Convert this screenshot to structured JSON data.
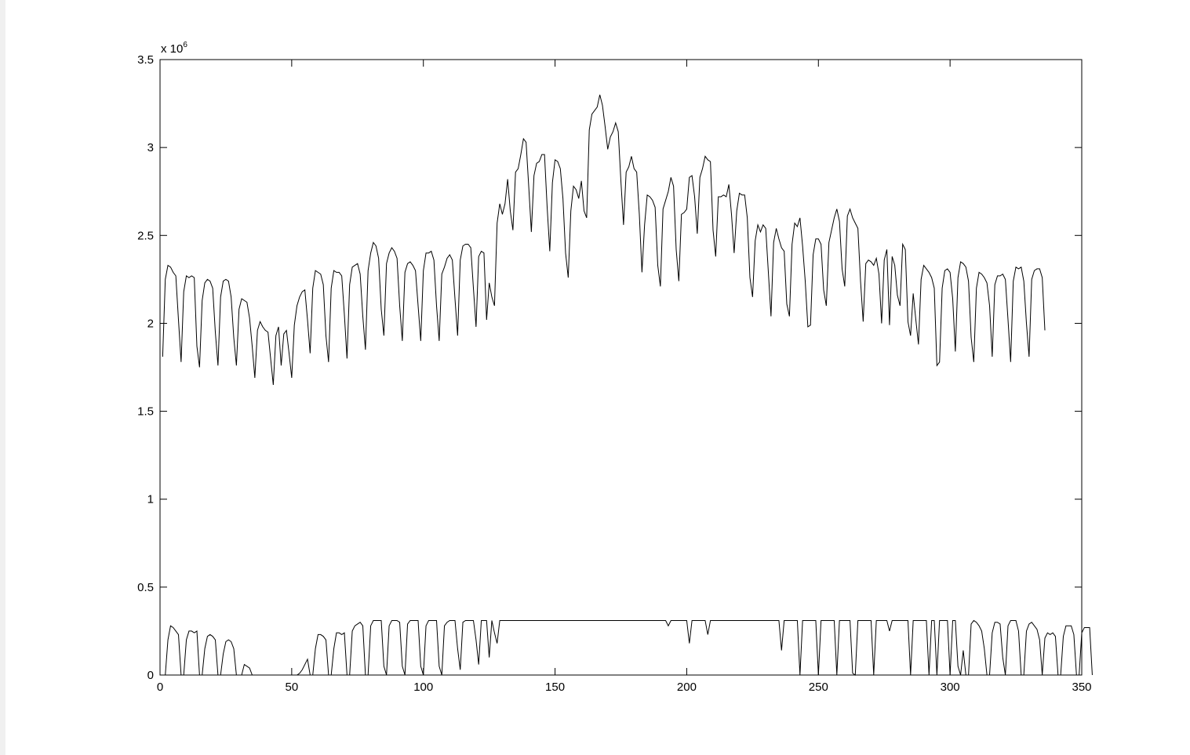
{
  "chart_data": {
    "type": "line",
    "title": "",
    "xlabel": "",
    "ylabel": "",
    "y_exponent_label": "x 10",
    "y_exponent_power": "6",
    "xlim": [
      0,
      350
    ],
    "ylim": [
      0,
      3500000
    ],
    "x_ticks": [
      0,
      50,
      100,
      150,
      200,
      250,
      300,
      350
    ],
    "y_ticks": [
      0,
      500000,
      1000000,
      1500000,
      2000000,
      2500000,
      3000000,
      3500000
    ],
    "x_tick_labels": [
      "0",
      "50",
      "100",
      "150",
      "200",
      "250",
      "300",
      "350"
    ],
    "y_tick_labels": [
      "0",
      "0.5",
      "1",
      "1.5",
      "2",
      "2.5",
      "3",
      "3.5"
    ],
    "grid": false,
    "line_color": "#000000",
    "series": [
      {
        "values": [
          1810000,
          2250000,
          2330000,
          2320000,
          2290000,
          2270000,
          2020000,
          1780000,
          2180000,
          2270000,
          2260000,
          2270000,
          2260000,
          1870000,
          1750000,
          2130000,
          2230000,
          2250000,
          2240000,
          2200000,
          1950000,
          1760000,
          2150000,
          2240000,
          2250000,
          2240000,
          2150000,
          1920000,
          1760000,
          2080000,
          2140000,
          2130000,
          2120000,
          2030000,
          1870000,
          1690000,
          1960000,
          2010000,
          1980000,
          1960000,
          1950000,
          1800000,
          1650000,
          1930000,
          1980000,
          1760000,
          1940000,
          1960000,
          1830000,
          1690000,
          1990000,
          2100000,
          2150000,
          2180000,
          2190000,
          2020000,
          1830000,
          2200000,
          2300000,
          2290000,
          2280000,
          2220000,
          1930000,
          1780000,
          2200000,
          2300000,
          2290000,
          2290000,
          2270000,
          2050000,
          1800000,
          2220000,
          2320000,
          2330000,
          2340000,
          2280000,
          2040000,
          1850000,
          2300000,
          2400000,
          2460000,
          2440000,
          2370000,
          2080000,
          1930000,
          2340000,
          2400000,
          2430000,
          2410000,
          2370000,
          2100000,
          1900000,
          2290000,
          2340000,
          2350000,
          2330000,
          2300000,
          2100000,
          1900000,
          2300000,
          2400000,
          2400000,
          2410000,
          2360000,
          2100000,
          1900000,
          2280000,
          2320000,
          2370000,
          2390000,
          2360000,
          2140000,
          1930000,
          2360000,
          2440000,
          2450000,
          2450000,
          2430000,
          2200000,
          1980000,
          2380000,
          2410000,
          2400000,
          2020000,
          2230000,
          2150000,
          2100000,
          2570000,
          2680000,
          2620000,
          2680000,
          2820000,
          2640000,
          2530000,
          2860000,
          2880000,
          2960000,
          3050000,
          3030000,
          2780000,
          2520000,
          2840000,
          2910000,
          2920000,
          2960000,
          2960000,
          2660000,
          2410000,
          2800000,
          2930000,
          2920000,
          2880000,
          2710000,
          2400000,
          2260000,
          2640000,
          2780000,
          2760000,
          2710000,
          2810000,
          2640000,
          2600000,
          3100000,
          3190000,
          3210000,
          3230000,
          3300000,
          3240000,
          3120000,
          2990000,
          3060000,
          3090000,
          3140000,
          3090000,
          2810000,
          2560000,
          2860000,
          2890000,
          2950000,
          2880000,
          2860000,
          2620000,
          2290000,
          2560000,
          2730000,
          2720000,
          2700000,
          2660000,
          2330000,
          2210000,
          2650000,
          2700000,
          2750000,
          2830000,
          2780000,
          2420000,
          2240000,
          2620000,
          2630000,
          2650000,
          2830000,
          2840000,
          2720000,
          2510000,
          2830000,
          2880000,
          2950000,
          2930000,
          2920000,
          2530000,
          2380000,
          2720000,
          2720000,
          2730000,
          2720000,
          2790000,
          2620000,
          2400000,
          2640000,
          2740000,
          2730000,
          2730000,
          2600000,
          2260000,
          2150000,
          2470000,
          2560000,
          2520000,
          2560000,
          2540000,
          2290000,
          2040000,
          2460000,
          2540000,
          2480000,
          2430000,
          2410000,
          2110000,
          2040000,
          2450000,
          2570000,
          2550000,
          2600000,
          2440000,
          2240000,
          1980000,
          1990000,
          2390000,
          2480000,
          2480000,
          2450000,
          2190000,
          2100000,
          2460000,
          2530000,
          2600000,
          2650000,
          2580000,
          2310000,
          2210000,
          2610000,
          2650000,
          2600000,
          2570000,
          2540000,
          2240000,
          2010000,
          2340000,
          2360000,
          2350000,
          2330000,
          2370000,
          2280000,
          2000000,
          2360000,
          2420000,
          1990000,
          2380000,
          2330000,
          2160000,
          2100000,
          2450000,
          2420000,
          2010000,
          1930000,
          2170000,
          2020000,
          1880000,
          2250000,
          2330000,
          2310000,
          2290000,
          2260000,
          2200000,
          1760000,
          1780000,
          2200000,
          2300000,
          2310000,
          2290000,
          2140000,
          1840000,
          2260000,
          2350000,
          2340000,
          2320000,
          2240000,
          1920000,
          1780000,
          2200000,
          2290000,
          2280000,
          2260000,
          2230000,
          2100000,
          1810000,
          2220000,
          2270000,
          2270000,
          2280000,
          2250000,
          2020000,
          1780000,
          2240000,
          2320000,
          2310000,
          2320000,
          2240000,
          2000000,
          1810000,
          2250000,
          2300000,
          2310000,
          2310000,
          2260000,
          1960000
        ]
      },
      {
        "values": [
          0,
          0,
          200000,
          280000,
          270000,
          250000,
          230000,
          0,
          0,
          200000,
          250000,
          250000,
          240000,
          250000,
          0,
          0,
          150000,
          220000,
          230000,
          220000,
          200000,
          0,
          0,
          120000,
          190000,
          200000,
          190000,
          150000,
          0,
          0,
          0,
          60000,
          50000,
          40000,
          0,
          0,
          0,
          0,
          0,
          0,
          0,
          0,
          0,
          0,
          0,
          0,
          0,
          0,
          0,
          0,
          0,
          0,
          10000,
          30000,
          60000,
          90000,
          0,
          0,
          150000,
          230000,
          230000,
          220000,
          200000,
          0,
          0,
          150000,
          240000,
          240000,
          230000,
          240000,
          0,
          0,
          250000,
          280000,
          290000,
          300000,
          280000,
          0,
          0,
          280000,
          310000,
          310000,
          310000,
          310000,
          50000,
          0,
          280000,
          310000,
          310000,
          310000,
          300000,
          50000,
          0,
          290000,
          310000,
          310000,
          310000,
          310000,
          50000,
          0,
          280000,
          310000,
          310000,
          310000,
          310000,
          50000,
          0,
          280000,
          300000,
          310000,
          310000,
          310000,
          150000,
          30000,
          300000,
          310000,
          310000,
          310000,
          310000,
          200000,
          60000,
          310000,
          310000,
          310000,
          100000,
          310000,
          240000,
          180000,
          310000,
          310000,
          310000,
          310000,
          310000,
          310000,
          310000,
          310000,
          310000,
          310000,
          310000,
          310000,
          310000,
          310000,
          310000,
          310000,
          310000,
          310000,
          310000,
          310000,
          310000,
          310000,
          310000,
          310000,
          310000,
          310000,
          310000,
          310000,
          310000,
          310000,
          310000,
          310000,
          310000,
          310000,
          310000,
          310000,
          310000,
          310000,
          310000,
          310000,
          310000,
          310000,
          310000,
          310000,
          310000,
          310000,
          310000,
          310000,
          310000,
          310000,
          310000,
          310000,
          310000,
          310000,
          310000,
          310000,
          310000,
          310000,
          310000,
          310000,
          310000,
          310000,
          310000,
          310000,
          280000,
          310000,
          310000,
          310000,
          310000,
          310000,
          310000,
          310000,
          180000,
          310000,
          310000,
          310000,
          310000,
          310000,
          310000,
          230000,
          310000,
          310000,
          310000,
          310000,
          310000,
          310000,
          310000,
          310000,
          310000,
          310000,
          310000,
          310000,
          310000,
          310000,
          310000,
          310000,
          310000,
          310000,
          310000,
          310000,
          310000,
          310000,
          310000,
          310000,
          310000,
          310000,
          310000,
          140000,
          310000,
          310000,
          310000,
          310000,
          310000,
          310000,
          0,
          310000,
          310000,
          310000,
          310000,
          310000,
          310000,
          0,
          310000,
          310000,
          310000,
          310000,
          310000,
          310000,
          0,
          310000,
          310000,
          310000,
          310000,
          310000,
          10000,
          0,
          310000,
          310000,
          310000,
          310000,
          310000,
          310000,
          0,
          310000,
          310000,
          310000,
          310000,
          310000,
          250000,
          310000,
          310000,
          310000,
          310000,
          310000,
          310000,
          310000,
          0,
          310000,
          310000,
          310000,
          310000,
          310000,
          310000,
          0,
          310000,
          310000,
          0,
          310000,
          310000,
          310000,
          310000,
          0,
          310000,
          310000,
          50000,
          0,
          140000,
          0,
          0,
          290000,
          310000,
          300000,
          280000,
          250000,
          150000,
          0,
          0,
          240000,
          300000,
          300000,
          290000,
          100000,
          0,
          280000,
          310000,
          310000,
          310000,
          250000,
          0,
          0,
          250000,
          290000,
          300000,
          280000,
          260000,
          200000,
          0,
          210000,
          240000,
          230000,
          240000,
          220000,
          0,
          0,
          220000,
          280000,
          280000,
          280000,
          230000,
          0,
          0,
          240000,
          270000,
          270000,
          270000,
          0
        ]
      }
    ]
  }
}
